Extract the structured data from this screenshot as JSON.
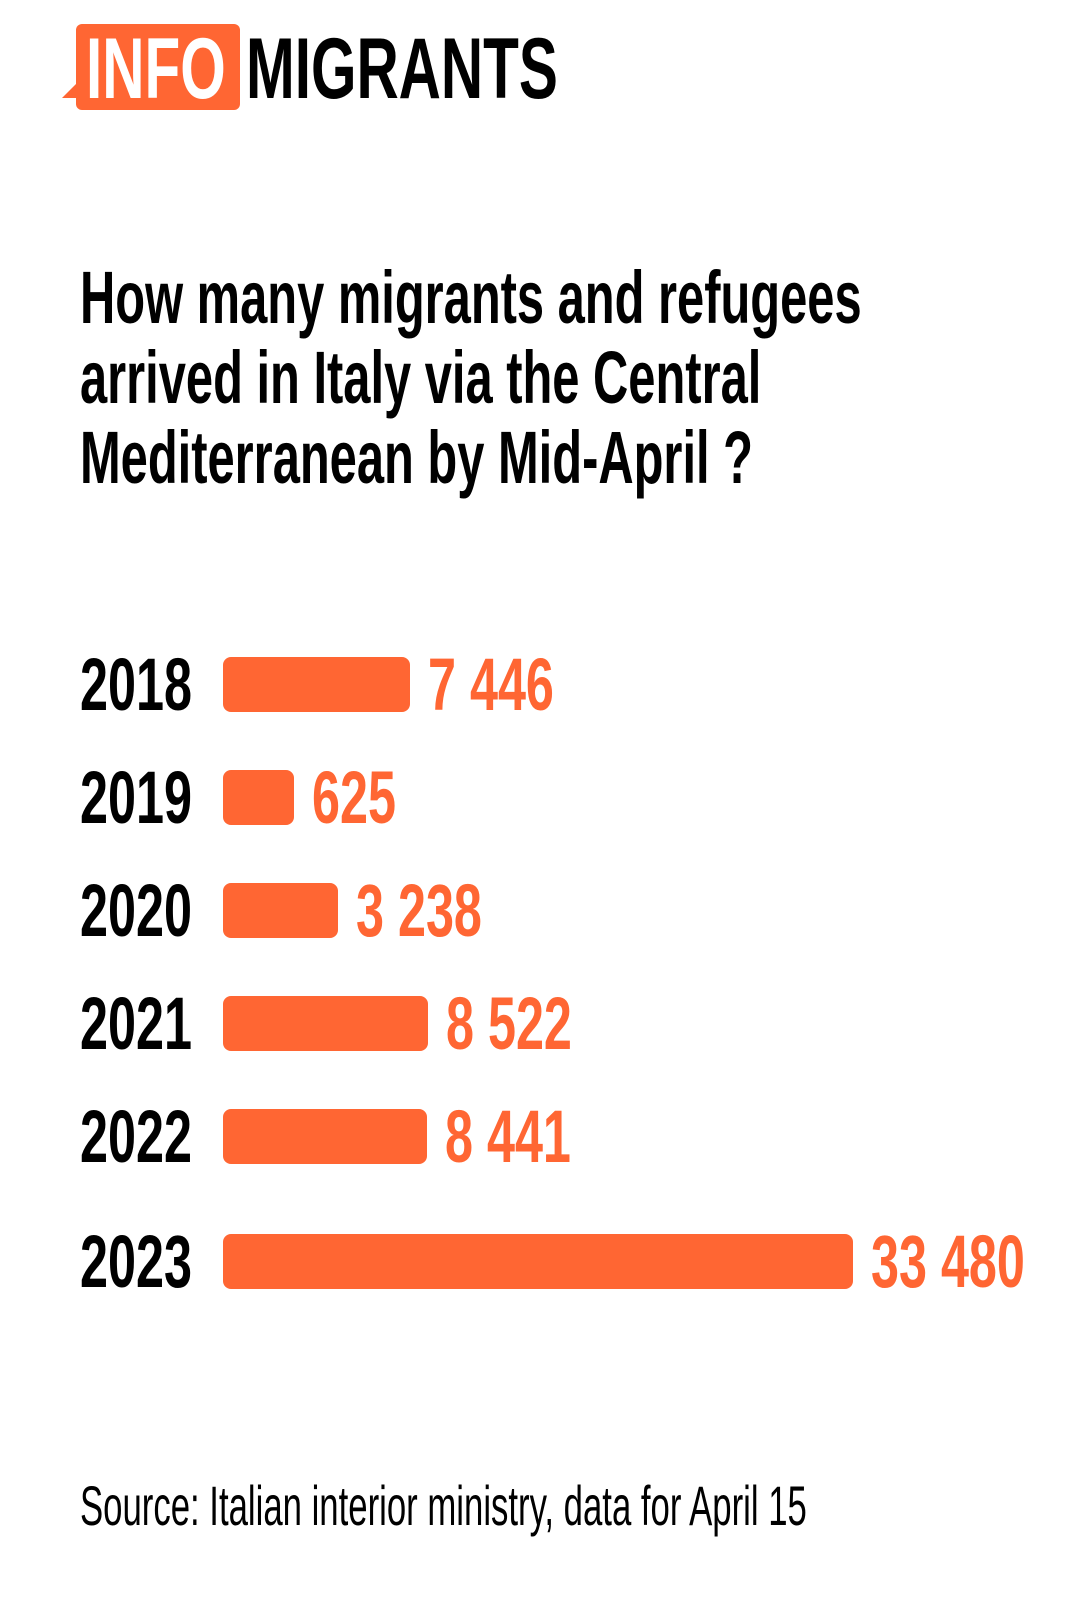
{
  "logo": {
    "part1": "INFO",
    "part2": "MIGRANTS"
  },
  "colors": {
    "accent": "#ff6633",
    "text": "#000000"
  },
  "chart_data": {
    "type": "bar",
    "orientation": "horizontal",
    "title": "How many migrants and refugees arrived in Italy via the Central Mediterranean by Mid-April ?",
    "title_lines": [
      "How many migrants and refugees",
      "arrived in Italy via the Central",
      "Mediterranean by Mid-April ?"
    ],
    "categories": [
      "2018",
      "2019",
      "2020",
      "2021",
      "2022",
      "2023"
    ],
    "values": [
      7446,
      625,
      3238,
      8522,
      8441,
      33480
    ],
    "labels": [
      "7 446",
      "625",
      "3 238",
      "8 522",
      "8 441",
      "33 480"
    ],
    "xlabel": "",
    "ylabel": "",
    "xlim": [
      0,
      33480
    ],
    "grid": false,
    "legend": "none"
  },
  "source": "Source: Italian interior ministry, data for April 15"
}
